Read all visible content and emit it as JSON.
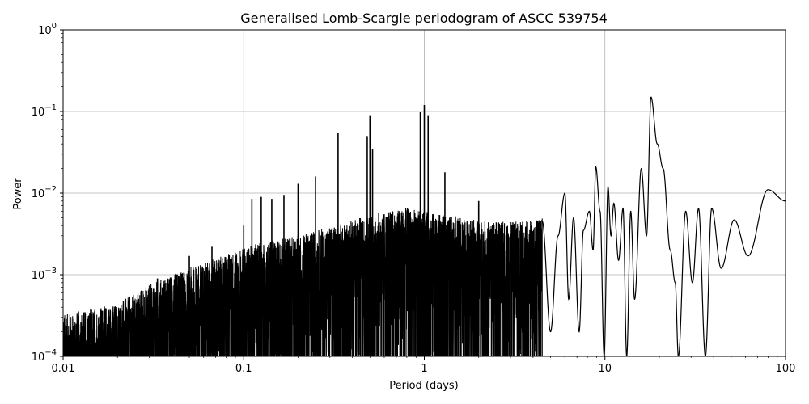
{
  "chart_data": {
    "type": "line",
    "title": "Generalised Lomb-Scargle periodogram of ASCC 539754",
    "xlabel": "Period (days)",
    "ylabel": "Power",
    "x_scale": "log",
    "y_scale": "log",
    "xlim": [
      0.01,
      100
    ],
    "ylim": [
      0.0001,
      1
    ],
    "grid": true,
    "line_color": "#000000",
    "x_ticks": [
      {
        "value": 0.01,
        "label": "0.01"
      },
      {
        "value": 0.1,
        "label": "0.1"
      },
      {
        "value": 1,
        "label": "1"
      },
      {
        "value": 10,
        "label": "10"
      },
      {
        "value": 100,
        "label": "100"
      }
    ],
    "y_ticks": [
      {
        "value": 0.0001,
        "base": "10",
        "exp": "−4"
      },
      {
        "value": 0.001,
        "base": "10",
        "exp": "−3"
      },
      {
        "value": 0.01,
        "base": "10",
        "exp": "−2"
      },
      {
        "value": 0.1,
        "base": "10",
        "exp": "−1"
      },
      {
        "value": 1,
        "base": "10",
        "exp": "0"
      }
    ],
    "noise_envelope": [
      {
        "x": 0.01,
        "y": 0.0003
      },
      {
        "x": 0.02,
        "y": 0.0004
      },
      {
        "x": 0.03,
        "y": 0.0007
      },
      {
        "x": 0.05,
        "y": 0.0011
      },
      {
        "x": 0.08,
        "y": 0.0016
      },
      {
        "x": 0.12,
        "y": 0.0022
      },
      {
        "x": 0.2,
        "y": 0.0028
      },
      {
        "x": 0.3,
        "y": 0.0035
      },
      {
        "x": 0.5,
        "y": 0.005
      },
      {
        "x": 0.8,
        "y": 0.006
      },
      {
        "x": 1.2,
        "y": 0.005
      },
      {
        "x": 2.0,
        "y": 0.0042
      },
      {
        "x": 3.0,
        "y": 0.004
      },
      {
        "x": 4.5,
        "y": 0.0045
      }
    ],
    "peaks": [
      {
        "x": 0.0333,
        "y": 0.0009
      },
      {
        "x": 0.05,
        "y": 0.0017
      },
      {
        "x": 0.0667,
        "y": 0.0022
      },
      {
        "x": 0.1,
        "y": 0.004
      },
      {
        "x": 0.111,
        "y": 0.0085
      },
      {
        "x": 0.125,
        "y": 0.009
      },
      {
        "x": 0.143,
        "y": 0.0085
      },
      {
        "x": 0.167,
        "y": 0.0095
      },
      {
        "x": 0.2,
        "y": 0.013
      },
      {
        "x": 0.25,
        "y": 0.016
      },
      {
        "x": 0.333,
        "y": 0.055
      },
      {
        "x": 0.483,
        "y": 0.05
      },
      {
        "x": 0.5,
        "y": 0.09
      },
      {
        "x": 0.517,
        "y": 0.035
      },
      {
        "x": 0.95,
        "y": 0.1
      },
      {
        "x": 1.0,
        "y": 0.12
      },
      {
        "x": 1.05,
        "y": 0.09
      },
      {
        "x": 1.3,
        "y": 0.018
      },
      {
        "x": 2.0,
        "y": 0.008
      }
    ],
    "smooth_curve": [
      {
        "x": 4.5,
        "y": 0.0045
      },
      {
        "x": 5.0,
        "y": 0.0002
      },
      {
        "x": 5.5,
        "y": 0.003
      },
      {
        "x": 6.0,
        "y": 0.01
      },
      {
        "x": 6.3,
        "y": 0.0005
      },
      {
        "x": 6.7,
        "y": 0.005
      },
      {
        "x": 7.2,
        "y": 0.0002
      },
      {
        "x": 7.6,
        "y": 0.0035
      },
      {
        "x": 8.2,
        "y": 0.006
      },
      {
        "x": 8.6,
        "y": 0.002
      },
      {
        "x": 8.9,
        "y": 0.021
      },
      {
        "x": 9.4,
        "y": 0.006
      },
      {
        "x": 9.9,
        "y": 0.0001
      },
      {
        "x": 10.4,
        "y": 0.012
      },
      {
        "x": 10.8,
        "y": 0.003
      },
      {
        "x": 11.2,
        "y": 0.0075
      },
      {
        "x": 11.9,
        "y": 0.0015
      },
      {
        "x": 12.6,
        "y": 0.0065
      },
      {
        "x": 13.2,
        "y": 0.0001
      },
      {
        "x": 13.9,
        "y": 0.006
      },
      {
        "x": 14.6,
        "y": 0.0005
      },
      {
        "x": 15.9,
        "y": 0.02
      },
      {
        "x": 17.0,
        "y": 0.003
      },
      {
        "x": 18.0,
        "y": 0.15
      },
      {
        "x": 19.5,
        "y": 0.04
      },
      {
        "x": 21.0,
        "y": 0.02
      },
      {
        "x": 23.0,
        "y": 0.002
      },
      {
        "x": 24.5,
        "y": 0.0008
      },
      {
        "x": 25.5,
        "y": 0.0001
      },
      {
        "x": 28.0,
        "y": 0.006
      },
      {
        "x": 30.5,
        "y": 0.0008
      },
      {
        "x": 33.0,
        "y": 0.0065
      },
      {
        "x": 36.0,
        "y": 0.0001
      },
      {
        "x": 39.0,
        "y": 0.0065
      },
      {
        "x": 44.0,
        "y": 0.0012
      },
      {
        "x": 52.0,
        "y": 0.0047
      },
      {
        "x": 62.0,
        "y": 0.0017
      },
      {
        "x": 80.0,
        "y": 0.011
      },
      {
        "x": 100.0,
        "y": 0.008
      }
    ]
  }
}
